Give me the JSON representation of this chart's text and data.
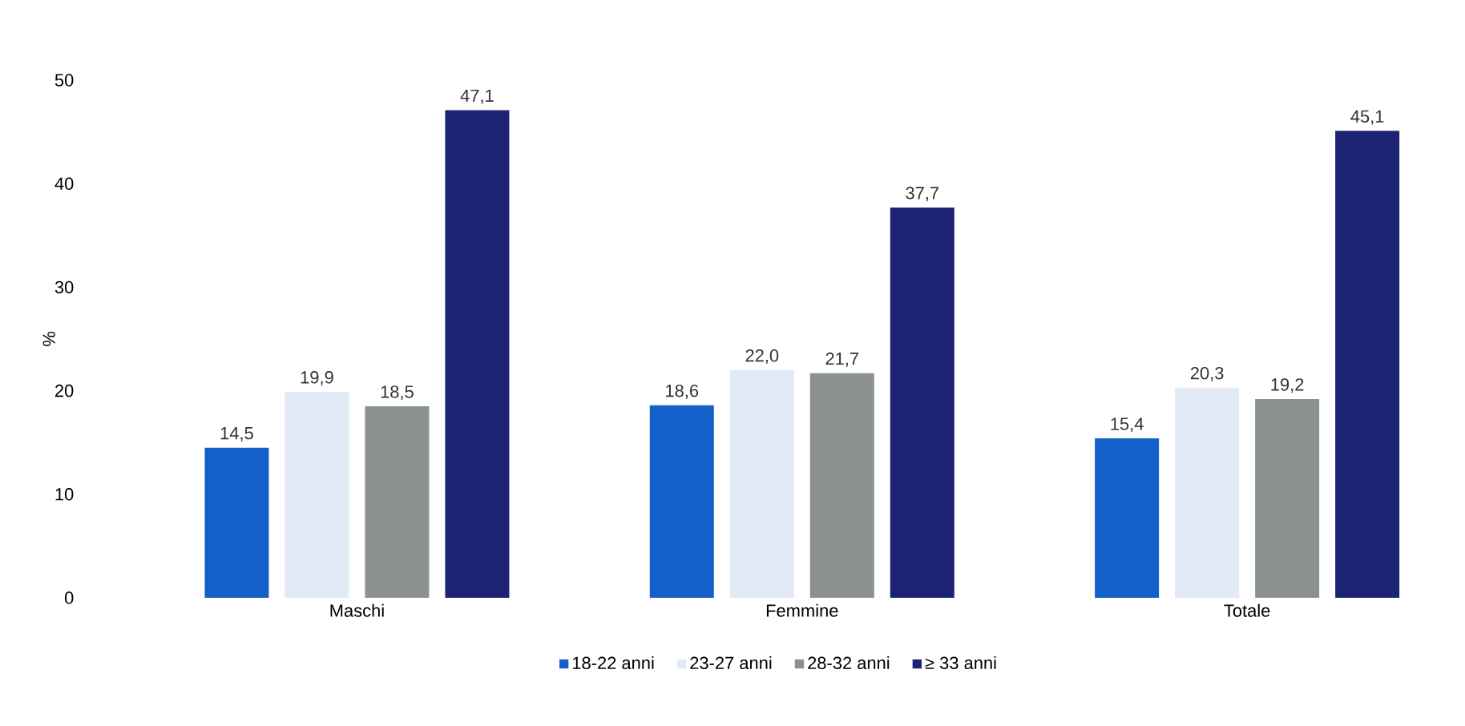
{
  "chart_data": {
    "type": "bar",
    "ylabel": "%",
    "categories": [
      "Maschi",
      "Femmine",
      "Totale"
    ],
    "series": [
      {
        "name": "18-22 anni",
        "color": "#1560c8",
        "values": [
          14.5,
          18.6,
          15.4
        ],
        "value_labels": [
          "14,5",
          "18,6",
          "15,4"
        ]
      },
      {
        "name": "23-27 anni",
        "color": "#e2eaf7",
        "values": [
          19.9,
          22.0,
          20.3
        ],
        "value_labels": [
          "19,9",
          "22,0",
          "20,3"
        ]
      },
      {
        "name": "28-32 anni",
        "color": "#8a9190",
        "values": [
          18.5,
          21.7,
          19.2
        ],
        "value_labels": [
          "18,5",
          "21,7",
          "19,2"
        ]
      },
      {
        "name": "≥ 33 anni",
        "color": "#1c2372",
        "values": [
          47.1,
          37.7,
          45.1
        ],
        "value_labels": [
          "47,1",
          "37,7",
          "45,1"
        ]
      }
    ],
    "ylim": [
      0,
      50
    ],
    "yticks": [
      0,
      10,
      20,
      30,
      40,
      50
    ],
    "legend": "bottom"
  }
}
